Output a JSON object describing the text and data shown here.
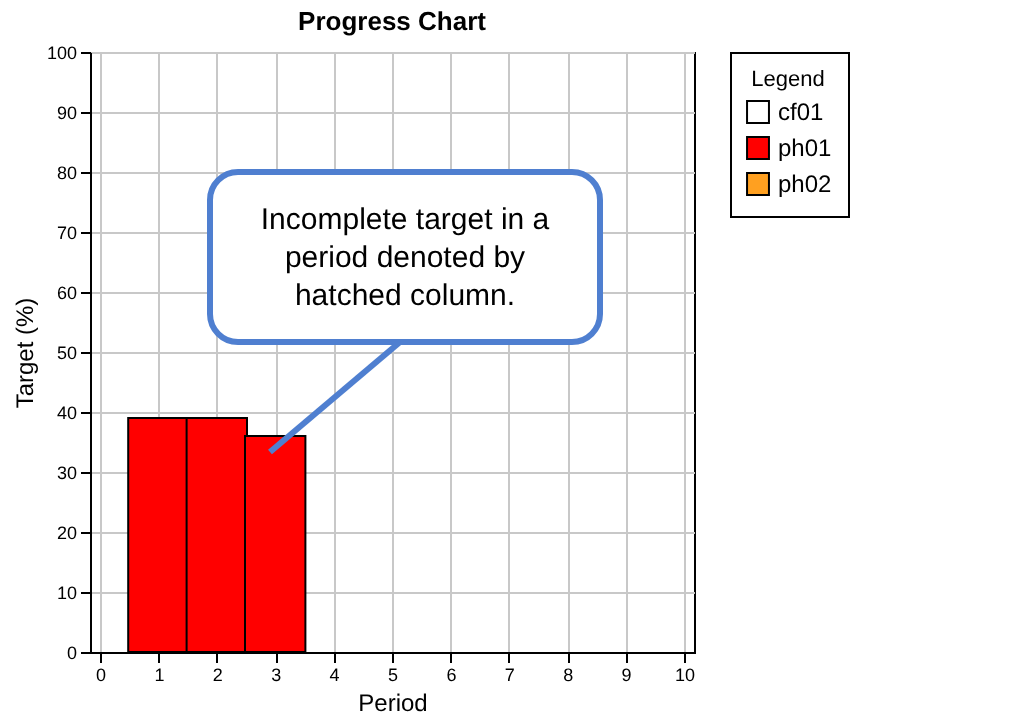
{
  "chart_data": {
    "type": "bar",
    "title": "Progress Chart",
    "xlabel": "Period",
    "ylabel": "Target (%)",
    "legend_title": "Legend",
    "x": [
      1,
      2,
      3
    ],
    "series": [
      {
        "name": "cf01",
        "color": "#ffffff",
        "values": [
          null,
          null,
          null
        ]
      },
      {
        "name": "ph01",
        "color": "#ff0000",
        "values": [
          39,
          39,
          36
        ]
      },
      {
        "name": "ph02",
        "color": "#ffa020",
        "values": [
          null,
          null,
          null
        ]
      }
    ],
    "xlim": [
      0,
      10
    ],
    "xticks": [
      0,
      1,
      2,
      3,
      4,
      5,
      6,
      7,
      8,
      9,
      10
    ],
    "ylim": [
      0,
      100
    ],
    "yticks": [
      0,
      10,
      20,
      30,
      40,
      50,
      60,
      70,
      80,
      90,
      100
    ],
    "grid": true,
    "legend": "right",
    "annotations": [
      "Incomplete target in a period denoted by hatched column."
    ]
  }
}
